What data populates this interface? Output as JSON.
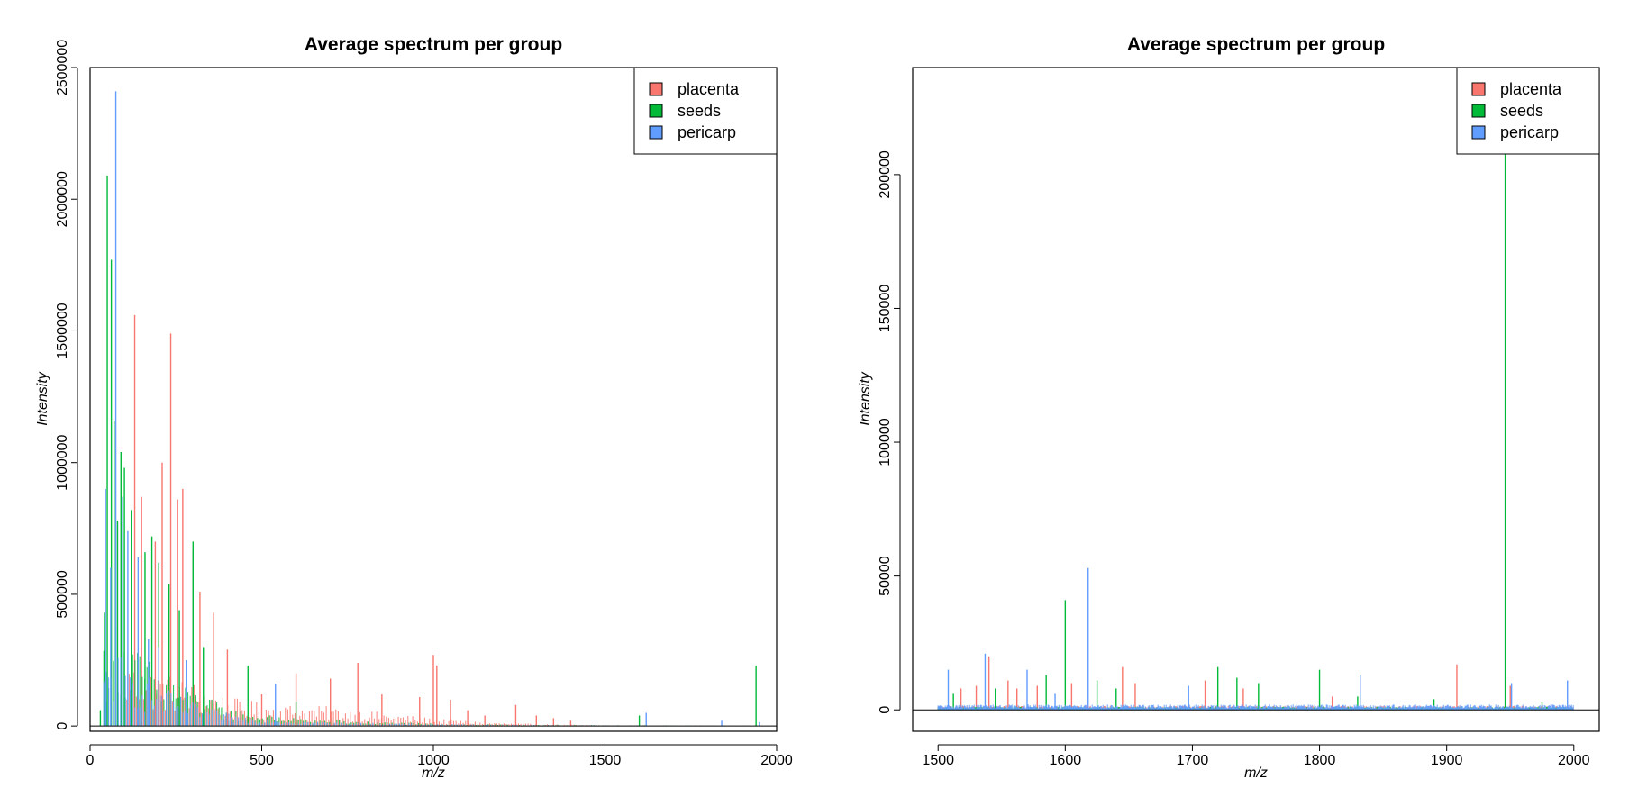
{
  "chart_data": [
    {
      "type": "line",
      "subtype": "spectrum",
      "title": "Average spectrum per group",
      "xlabel": "m/z",
      "ylabel": "Intensity",
      "xlim": [
        0,
        2000
      ],
      "ylim": [
        -20000,
        2500000
      ],
      "xticks": [
        0,
        500,
        1000,
        1500,
        2000
      ],
      "xtick_labels": [
        "0",
        "500",
        "1000",
        "1500",
        "2000"
      ],
      "yticks": [
        0,
        500000,
        1000000,
        1500000,
        2000000,
        2500000
      ],
      "ytick_labels": [
        "0",
        "500000",
        "1000000",
        "1500000",
        "2000000",
        "2500000"
      ],
      "grid": false,
      "legend_position": "top-right",
      "series": [
        {
          "name": "placenta",
          "color": "#F8766D",
          "peaks": [
            [
              130,
              1560000
            ],
            [
              150,
              870000
            ],
            [
              190,
              700000
            ],
            [
              210,
              1000000
            ],
            [
              235,
              1490000
            ],
            [
              255,
              860000
            ],
            [
              270,
              900000
            ],
            [
              300,
              670000
            ],
            [
              320,
              510000
            ],
            [
              360,
              430000
            ],
            [
              400,
              290000
            ],
            [
              500,
              120000
            ],
            [
              600,
              200000
            ],
            [
              700,
              180000
            ],
            [
              780,
              240000
            ],
            [
              850,
              120000
            ],
            [
              960,
              110000
            ],
            [
              1000,
              270000
            ],
            [
              1010,
              230000
            ],
            [
              1050,
              100000
            ],
            [
              1100,
              60000
            ],
            [
              1150,
              40000
            ],
            [
              1240,
              80000
            ],
            [
              1300,
              40000
            ],
            [
              1350,
              30000
            ],
            [
              1400,
              20000
            ]
          ],
          "envelope": [
            [
              100,
              250000
            ],
            [
              200,
              210000
            ],
            [
              300,
              170000
            ],
            [
              400,
              110000
            ],
            [
              500,
              90000
            ],
            [
              600,
              80000
            ],
            [
              700,
              75000
            ],
            [
              800,
              60000
            ],
            [
              900,
              45000
            ],
            [
              1000,
              30000
            ],
            [
              1100,
              20000
            ],
            [
              1200,
              12000
            ],
            [
              1300,
              8000
            ],
            [
              1400,
              5000
            ],
            [
              1500,
              3000
            ],
            [
              1600,
              2000
            ],
            [
              1700,
              1500
            ],
            [
              1800,
              1200
            ],
            [
              1900,
              1000
            ],
            [
              2000,
              800
            ]
          ]
        },
        {
          "name": "seeds",
          "color": "#00BA38",
          "peaks": [
            [
              30,
              60000
            ],
            [
              42,
              430000
            ],
            [
              50,
              2090000
            ],
            [
              62,
              1770000
            ],
            [
              70,
              1160000
            ],
            [
              80,
              780000
            ],
            [
              90,
              1040000
            ],
            [
              100,
              980000
            ],
            [
              120,
              820000
            ],
            [
              160,
              660000
            ],
            [
              180,
              720000
            ],
            [
              200,
              620000
            ],
            [
              230,
              540000
            ],
            [
              260,
              440000
            ],
            [
              300,
              700000
            ],
            [
              330,
              300000
            ],
            [
              460,
              230000
            ],
            [
              600,
              90000
            ],
            [
              1600,
              40000
            ],
            [
              1940,
              230000
            ]
          ],
          "envelope": [
            [
              40,
              350000
            ],
            [
              80,
              450000
            ],
            [
              120,
              320000
            ],
            [
              200,
              220000
            ],
            [
              300,
              140000
            ],
            [
              400,
              70000
            ],
            [
              500,
              45000
            ],
            [
              600,
              30000
            ],
            [
              800,
              18000
            ],
            [
              1000,
              10000
            ],
            [
              1200,
              6000
            ],
            [
              1400,
              4000
            ],
            [
              1600,
              3000
            ],
            [
              1800,
              2000
            ],
            [
              2000,
              1500
            ]
          ]
        },
        {
          "name": "pericarp",
          "color": "#619CFF",
          "peaks": [
            [
              45,
              900000
            ],
            [
              60,
              600000
            ],
            [
              75,
              2410000
            ],
            [
              95,
              870000
            ],
            [
              110,
              740000
            ],
            [
              140,
              640000
            ],
            [
              170,
              330000
            ],
            [
              200,
              300000
            ],
            [
              280,
              250000
            ],
            [
              540,
              160000
            ],
            [
              1620,
              50000
            ],
            [
              1840,
              20000
            ],
            [
              1950,
              15000
            ]
          ],
          "envelope": [
            [
              40,
              200000
            ],
            [
              50,
              260000
            ],
            [
              70,
              300000
            ],
            [
              100,
              270000
            ],
            [
              150,
              210000
            ],
            [
              200,
              160000
            ],
            [
              250,
              120000
            ],
            [
              300,
              90000
            ],
            [
              400,
              50000
            ],
            [
              500,
              30000
            ],
            [
              600,
              20000
            ],
            [
              800,
              12000
            ],
            [
              1000,
              8000
            ],
            [
              1200,
              5000
            ],
            [
              1400,
              3500
            ],
            [
              1600,
              2500
            ],
            [
              1800,
              2000
            ],
            [
              2000,
              1500
            ]
          ]
        }
      ]
    },
    {
      "type": "line",
      "subtype": "spectrum",
      "title": "Average spectrum per group",
      "xlabel": "m/z",
      "ylabel": "Intensity",
      "xlim": [
        1480,
        2020
      ],
      "ylim": [
        -8000,
        240000
      ],
      "xticks": [
        1500,
        1600,
        1700,
        1800,
        1900,
        2000
      ],
      "xtick_labels": [
        "1500",
        "1600",
        "1700",
        "1800",
        "1900",
        "2000"
      ],
      "yticks": [
        0,
        50000,
        100000,
        150000,
        200000
      ],
      "ytick_labels": [
        "0",
        "50000",
        "100000",
        "150000",
        "200000"
      ],
      "grid": false,
      "legend_position": "top-right",
      "series": [
        {
          "name": "placenta",
          "color": "#F8766D",
          "peaks": [
            [
              1518,
              8000
            ],
            [
              1530,
              9000
            ],
            [
              1540,
              20000
            ],
            [
              1555,
              11000
            ],
            [
              1562,
              8000
            ],
            [
              1578,
              9000
            ],
            [
              1605,
              10000
            ],
            [
              1645,
              16000
            ],
            [
              1655,
              10000
            ],
            [
              1710,
              11000
            ],
            [
              1740,
              8000
            ],
            [
              1810,
              5000
            ],
            [
              1908,
              17000
            ],
            [
              1950,
              9000
            ]
          ],
          "envelope": [
            [
              1500,
              1500
            ],
            [
              2000,
              1500
            ]
          ]
        },
        {
          "name": "seeds",
          "color": "#00BA38",
          "peaks": [
            [
              1512,
              6000
            ],
            [
              1545,
              8000
            ],
            [
              1585,
              13000
            ],
            [
              1600,
              41000
            ],
            [
              1625,
              11000
            ],
            [
              1640,
              8000
            ],
            [
              1720,
              16000
            ],
            [
              1735,
              12000
            ],
            [
              1752,
              10000
            ],
            [
              1800,
              15000
            ],
            [
              1830,
              5000
            ],
            [
              1890,
              4000
            ],
            [
              1946,
              240000
            ],
            [
              1975,
              3000
            ]
          ],
          "envelope": [
            [
              1500,
              1200
            ],
            [
              2000,
              1200
            ]
          ]
        },
        {
          "name": "pericarp",
          "color": "#619CFF",
          "peaks": [
            [
              1508,
              15000
            ],
            [
              1537,
              21000
            ],
            [
              1570,
              15000
            ],
            [
              1592,
              6000
            ],
            [
              1618,
              53000
            ],
            [
              1697,
              9000
            ],
            [
              1832,
              13000
            ],
            [
              1951,
              10000
            ],
            [
              1995,
              11000
            ]
          ],
          "envelope": [
            [
              1500,
              2000
            ],
            [
              2000,
              2000
            ]
          ]
        }
      ]
    }
  ]
}
